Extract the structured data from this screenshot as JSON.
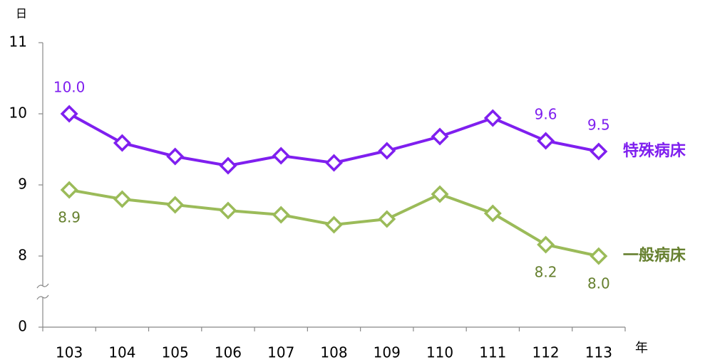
{
  "chart_data": {
    "type": "line",
    "y_label": "日",
    "x_label": "年",
    "categories": [
      "103",
      "104",
      "105",
      "106",
      "107",
      "108",
      "109",
      "110",
      "111",
      "112",
      "113"
    ],
    "series": [
      {
        "name": "特殊病床",
        "color": "#7f1fef",
        "label_color": "#7f1fef",
        "values": [
          10.0,
          9.59,
          9.4,
          9.27,
          9.41,
          9.31,
          9.48,
          9.68,
          9.94,
          9.62,
          9.47
        ],
        "value_labels": [
          "10.0",
          null,
          null,
          null,
          null,
          null,
          null,
          null,
          null,
          "9.6",
          "9.5"
        ]
      },
      {
        "name": "一般病床",
        "color": "#9bbb59",
        "label_color": "#66802f",
        "values": [
          8.93,
          8.8,
          8.72,
          8.64,
          8.58,
          8.44,
          8.52,
          8.87,
          8.6,
          8.16,
          7.99
        ],
        "value_labels": [
          "8.9",
          null,
          null,
          null,
          null,
          null,
          null,
          null,
          null,
          "8.2",
          "8.0"
        ]
      }
    ],
    "ylim": [
      0,
      11
    ],
    "yticks": [
      0,
      8,
      9,
      10,
      11
    ],
    "axis_break": true,
    "grid": false
  }
}
